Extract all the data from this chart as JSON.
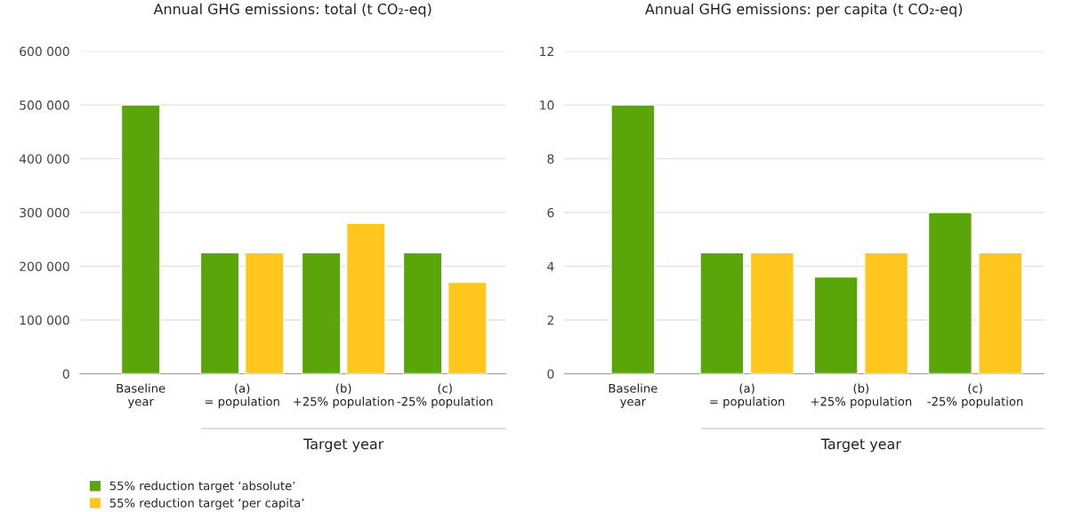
{
  "chart_data": [
    {
      "type": "bar",
      "title": "Annual GHG emissions: total (t CO₂-eq)",
      "categories": [
        "Baseline\nyear",
        "(a)\n= population",
        "(b)\n+25% population",
        "(c)\n-25% population"
      ],
      "xlabel": "Target year",
      "series": [
        {
          "name": "55% reduction target ‘absolute’",
          "color": "#5aa50a",
          "values": [
            500000,
            225000,
            225000,
            225000
          ]
        },
        {
          "name": "55% reduction target ‘per capita’",
          "color": "#ffc61e",
          "values": [
            null,
            225000,
            280000,
            170000
          ]
        }
      ],
      "ylim": [
        0,
        600000
      ],
      "yticks": [
        {
          "value": 0,
          "label": "0"
        },
        {
          "value": 100000,
          "label": "100 000"
        },
        {
          "value": 200000,
          "label": "200 000"
        },
        {
          "value": 300000,
          "label": "300 000"
        },
        {
          "value": 400000,
          "label": "400 000"
        },
        {
          "value": 500000,
          "label": "500 000"
        },
        {
          "value": 600000,
          "label": "600 000"
        }
      ],
      "grid": "y",
      "legend": "bottom left"
    },
    {
      "type": "bar",
      "title": "Annual GHG emissions: per capita (t CO₂-eq)",
      "categories": [
        "Baseline\nyear",
        "(a)\n= population",
        "(b)\n+25% population",
        "(c)\n-25% population"
      ],
      "xlabel": "Target year",
      "series": [
        {
          "color": "#5aa50a",
          "values": [
            10,
            4.5,
            3.6,
            6
          ]
        },
        {
          "color": "#ffc61e",
          "values": [
            null,
            4.5,
            4.5,
            4.5
          ]
        }
      ],
      "ylim": [
        0,
        12
      ],
      "yticks": [
        0,
        2,
        4,
        6,
        8,
        10,
        12
      ],
      "grid": "y"
    }
  ]
}
